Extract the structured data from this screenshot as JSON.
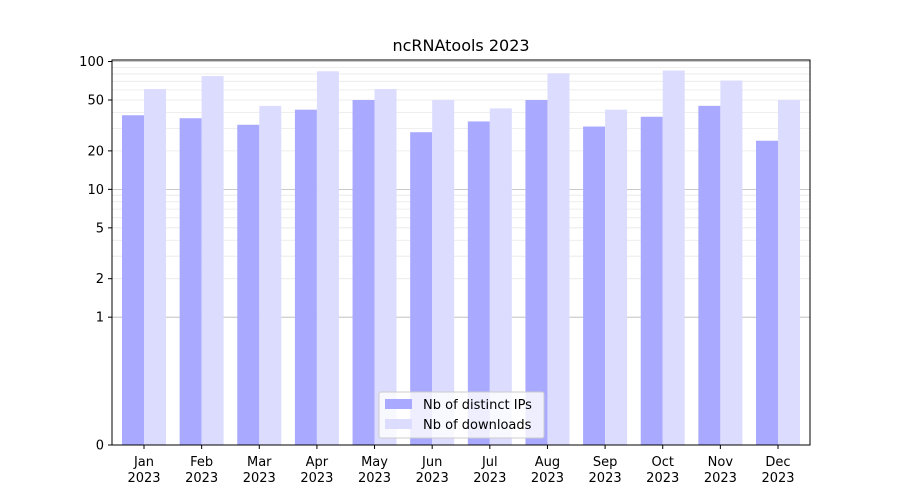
{
  "chart_data": {
    "type": "bar",
    "title": "ncRNAtools 2023",
    "xlabel": "",
    "ylabel": "",
    "categories": [
      {
        "month": "Jan",
        "year": "2023"
      },
      {
        "month": "Feb",
        "year": "2023"
      },
      {
        "month": "Mar",
        "year": "2023"
      },
      {
        "month": "Apr",
        "year": "2023"
      },
      {
        "month": "May",
        "year": "2023"
      },
      {
        "month": "Jun",
        "year": "2023"
      },
      {
        "month": "Jul",
        "year": "2023"
      },
      {
        "month": "Aug",
        "year": "2023"
      },
      {
        "month": "Sep",
        "year": "2023"
      },
      {
        "month": "Oct",
        "year": "2023"
      },
      {
        "month": "Nov",
        "year": "2023"
      },
      {
        "month": "Dec",
        "year": "2023"
      }
    ],
    "series": [
      {
        "name": "Nb of distinct IPs",
        "color": "#a9a9ff",
        "values": [
          38,
          36,
          32,
          42,
          50,
          28,
          34,
          50,
          31,
          37,
          45,
          24
        ]
      },
      {
        "name": "Nb of downloads",
        "color": "#dcdcff",
        "values": [
          61,
          77,
          45,
          84,
          61,
          50,
          43,
          81,
          42,
          85,
          71,
          50
        ]
      }
    ],
    "y_scale": "symlog",
    "ylim": [
      0,
      100
    ],
    "yticks": [
      {
        "value": 0,
        "label": "0"
      },
      {
        "value": 1,
        "label": "1"
      },
      {
        "value": 2,
        "label": "2"
      },
      {
        "value": 5,
        "label": "5"
      },
      {
        "value": 10,
        "label": "10"
      },
      {
        "value": 20,
        "label": "20"
      },
      {
        "value": 50,
        "label": "50"
      },
      {
        "value": 100,
        "label": "100"
      }
    ],
    "major_gridlines": [
      1,
      10,
      100
    ],
    "grid": true,
    "legend": "bottom-center"
  }
}
